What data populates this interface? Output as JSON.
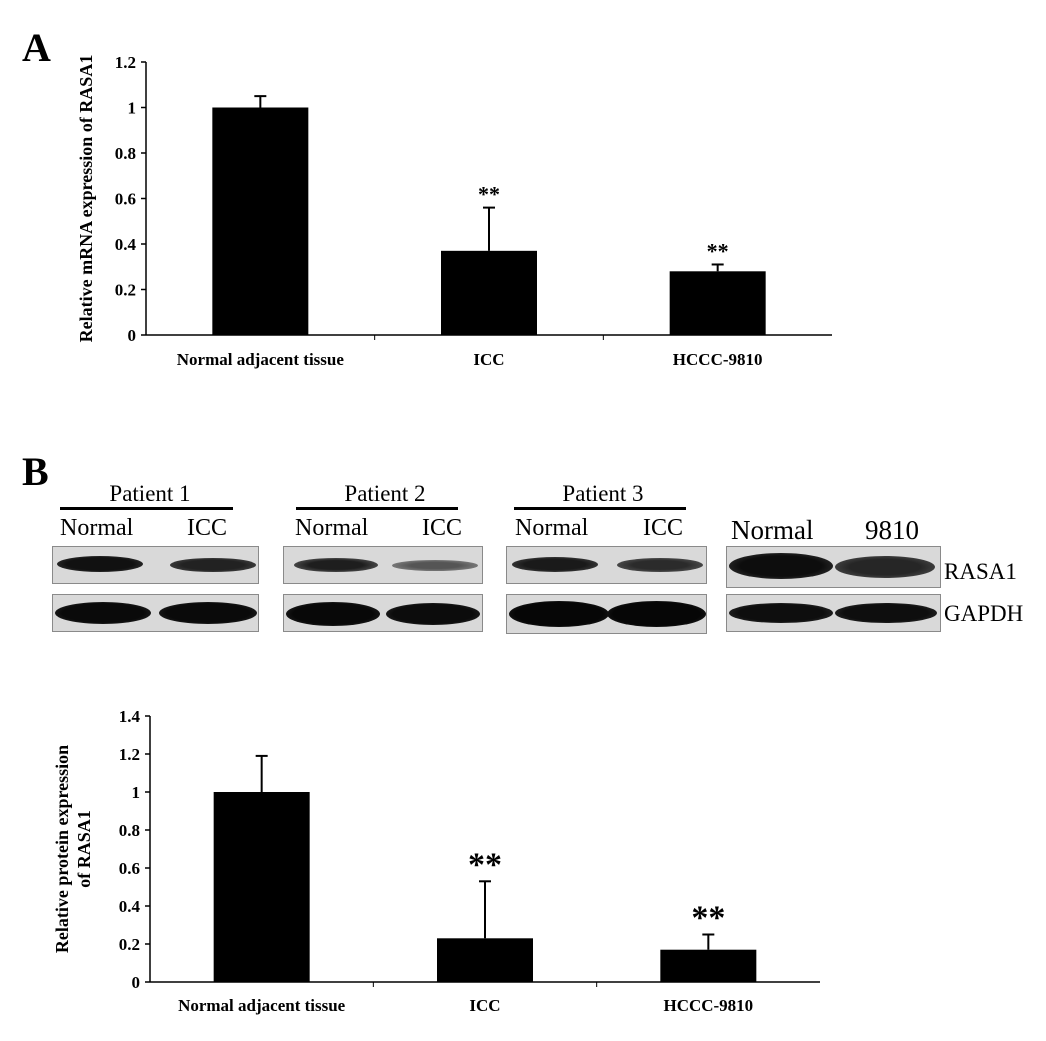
{
  "panels": {
    "a_letter": "A",
    "b_letter": "B"
  },
  "chart_data": [
    {
      "type": "bar",
      "panel": "A",
      "categories": [
        "Normal adjacent tissue",
        "ICC",
        "HCCC-9810"
      ],
      "values": [
        1.0,
        0.37,
        0.28
      ],
      "errors": [
        0.05,
        0.19,
        0.03
      ],
      "significance": [
        "",
        "**",
        "**"
      ],
      "ylabel": "Relative mRNA expression of RASA1",
      "ylim": [
        0,
        1.2
      ],
      "yticks": [
        "0",
        "0.2",
        "0.4",
        "0.6",
        "0.8",
        "1",
        "1.2"
      ],
      "bar_color": "#000000",
      "grid": false
    },
    {
      "type": "bar",
      "panel": "B",
      "categories": [
        "Normal adjacent tissue",
        "ICC",
        "HCCC-9810"
      ],
      "values": [
        1.0,
        0.23,
        0.17
      ],
      "errors": [
        0.19,
        0.3,
        0.08
      ],
      "significance": [
        "",
        "**",
        "**"
      ],
      "ylabel": [
        "Relative protein expression",
        "of RASA1"
      ],
      "ylim": [
        0,
        1.4
      ],
      "yticks": [
        "0",
        "0.2",
        "0.4",
        "0.6",
        "0.8",
        "1",
        "1.2",
        "1.4"
      ],
      "bar_color": "#000000",
      "grid": false
    }
  ],
  "blots": {
    "patients": [
      {
        "label": "Patient 1",
        "lanes": [
          "Normal",
          "ICC"
        ]
      },
      {
        "label": "Patient 2",
        "lanes": [
          "Normal",
          "ICC"
        ]
      },
      {
        "label": "Patient 3",
        "lanes": [
          "Normal",
          "ICC"
        ]
      }
    ],
    "cell_line_lanes": [
      "Normal",
      "9810"
    ],
    "markers": [
      "RASA1",
      "GAPDH"
    ]
  }
}
